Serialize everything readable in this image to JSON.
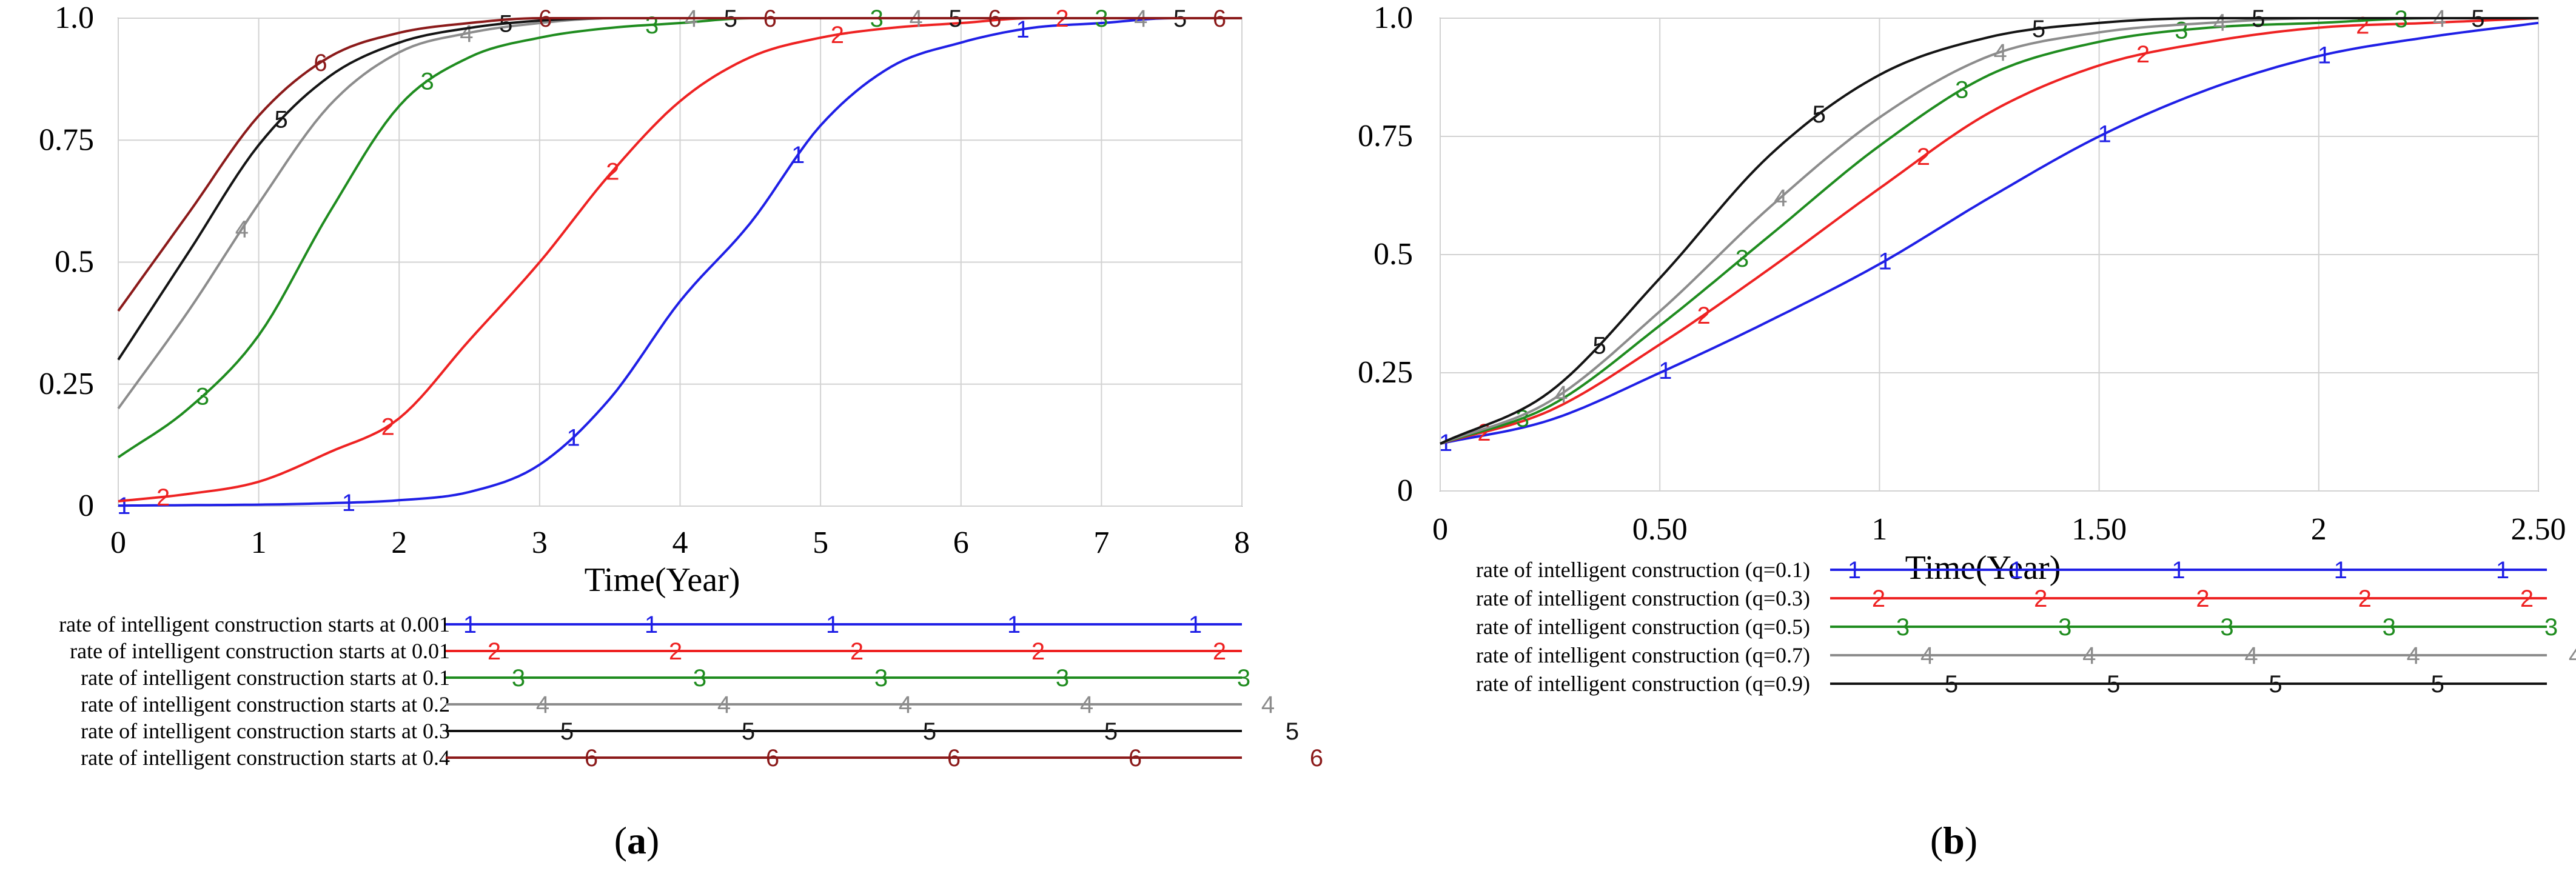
{
  "chart_data": [
    {
      "type": "line",
      "panel_label": "a",
      "xlabel": "Time(Year)",
      "ylabel": "",
      "xlim": [
        0,
        8
      ],
      "ylim": [
        0,
        1
      ],
      "x_ticks": [
        "0",
        "1",
        "2",
        "3",
        "4",
        "5",
        "6",
        "7",
        "8"
      ],
      "y_ticks": [
        "0",
        "0.25",
        "0.5",
        "0.75",
        "1.0"
      ],
      "grid": true,
      "legend_position": "bottom",
      "x": [
        0,
        0.5,
        1,
        1.5,
        2,
        2.5,
        3,
        3.5,
        4,
        4.5,
        5,
        5.5,
        6,
        6.5,
        7,
        7.5,
        8
      ],
      "series": [
        {
          "name": "rate of intelligent construction starts at 0.001",
          "marker": "1",
          "color": "#1f1fe6",
          "values": [
            0.001,
            0.002,
            0.003,
            0.006,
            0.012,
            0.029,
            0.085,
            0.22,
            0.42,
            0.58,
            0.78,
            0.9,
            0.95,
            0.98,
            0.99,
            1.0,
            1.0
          ]
        },
        {
          "name": "rate of intelligent construction starts at 0.01",
          "marker": "2",
          "color": "#ee2222",
          "values": [
            0.01,
            0.025,
            0.05,
            0.11,
            0.18,
            0.34,
            0.5,
            0.68,
            0.83,
            0.92,
            0.96,
            0.98,
            0.99,
            1.0,
            1.0,
            1.0,
            1.0
          ]
        },
        {
          "name": "rate of intelligent construction starts at 0.1",
          "marker": "3",
          "color": "#1f8c1f",
          "values": [
            0.1,
            0.2,
            0.35,
            0.6,
            0.82,
            0.92,
            0.96,
            0.98,
            0.99,
            1.0,
            1.0,
            1.0,
            1.0,
            1.0,
            1.0,
            1.0,
            1.0
          ]
        },
        {
          "name": "rate of intelligent construction starts at 0.2",
          "marker": "4",
          "color": "#8c8c8c",
          "values": [
            0.2,
            0.4,
            0.62,
            0.82,
            0.93,
            0.97,
            0.99,
            1.0,
            1.0,
            1.0,
            1.0,
            1.0,
            1.0,
            1.0,
            1.0,
            1.0,
            1.0
          ]
        },
        {
          "name": "rate of intelligent construction starts at 0.3",
          "marker": "5",
          "color": "#141414",
          "values": [
            0.3,
            0.52,
            0.74,
            0.88,
            0.95,
            0.98,
            0.995,
            1.0,
            1.0,
            1.0,
            1.0,
            1.0,
            1.0,
            1.0,
            1.0,
            1.0,
            1.0
          ]
        },
        {
          "name": "rate of intelligent construction starts at 0.4",
          "marker": "6",
          "color": "#8b1a1a",
          "values": [
            0.4,
            0.6,
            0.8,
            0.92,
            0.97,
            0.99,
            1.0,
            1.0,
            1.0,
            1.0,
            1.0,
            1.0,
            1.0,
            1.0,
            1.0,
            1.0,
            1.0
          ]
        }
      ]
    },
    {
      "type": "line",
      "panel_label": "b",
      "xlabel": "Time(Year)",
      "ylabel": "",
      "xlim": [
        0,
        2.5
      ],
      "ylim": [
        0,
        1
      ],
      "x_ticks": [
        "0",
        "0.50",
        "1",
        "1.50",
        "2",
        "2.50"
      ],
      "y_ticks": [
        "0",
        "0.25",
        "0.5",
        "0.75",
        "1.0"
      ],
      "grid": true,
      "legend_position": "bottom",
      "x": [
        0,
        0.25,
        0.5,
        0.75,
        1,
        1.25,
        1.5,
        1.75,
        2,
        2.25,
        2.5
      ],
      "series": [
        {
          "name": "rate of intelligent construction (q=0.1)",
          "marker": "1",
          "color": "#1f1fe6",
          "values": [
            0.1,
            0.15,
            0.25,
            0.36,
            0.48,
            0.62,
            0.75,
            0.85,
            0.92,
            0.96,
            0.99
          ]
        },
        {
          "name": "rate of intelligent construction (q=0.3)",
          "marker": "2",
          "color": "#ee2222",
          "values": [
            0.1,
            0.17,
            0.31,
            0.47,
            0.64,
            0.8,
            0.9,
            0.95,
            0.98,
            0.99,
            1.0
          ]
        },
        {
          "name": "rate of intelligent construction (q=0.5)",
          "marker": "3",
          "color": "#1f8c1f",
          "values": [
            0.1,
            0.18,
            0.35,
            0.54,
            0.73,
            0.88,
            0.95,
            0.98,
            0.99,
            1.0,
            1.0
          ]
        },
        {
          "name": "rate of intelligent construction (q=0.7)",
          "marker": "4",
          "color": "#8c8c8c",
          "values": [
            0.1,
            0.19,
            0.38,
            0.6,
            0.79,
            0.92,
            0.97,
            0.99,
            1.0,
            1.0,
            1.0
          ]
        },
        {
          "name": "rate of intelligent construction (q=0.9)",
          "marker": "5",
          "color": "#141414",
          "values": [
            0.1,
            0.21,
            0.45,
            0.71,
            0.88,
            0.96,
            0.99,
            1.0,
            1.0,
            1.0,
            1.0
          ]
        }
      ]
    }
  ]
}
